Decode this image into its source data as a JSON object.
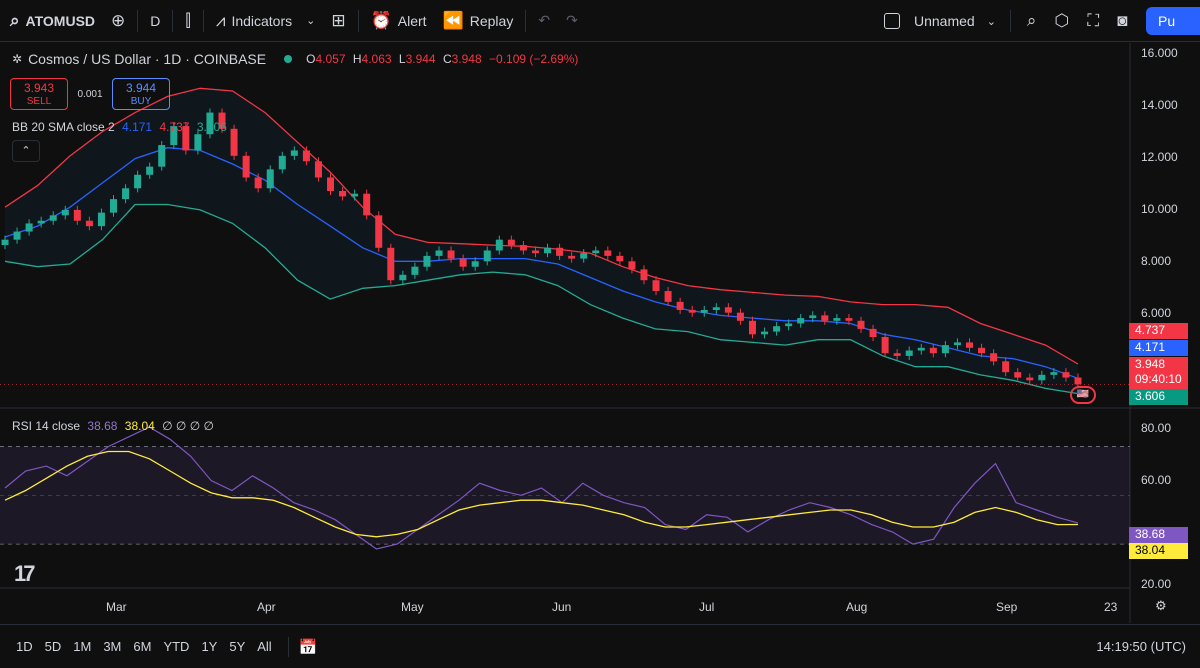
{
  "toolbar": {
    "symbol": "ATOMUSD",
    "interval": "D",
    "indicators": "Indicators",
    "alert": "Alert",
    "replay": "Replay",
    "layout_name": "Unnamed",
    "publish": "Pu"
  },
  "legend": {
    "title": "Cosmos / US Dollar · 1D · COINBASE",
    "open_label": "O",
    "open": "4.057",
    "high_label": "H",
    "high": "4.063",
    "low_label": "L",
    "low": "3.944",
    "close_label": "C",
    "close": "3.948",
    "change": "−0.109 (−2.69%)"
  },
  "trade": {
    "sell_price": "3.943",
    "sell_label": "SELL",
    "spread": "0.001",
    "buy_price": "3.944",
    "buy_label": "BUY"
  },
  "bb": {
    "label": "BB 20 SMA close 2",
    "basis": "4.171",
    "upper": "4.737",
    "lower": "3.606"
  },
  "rsi": {
    "label": "RSI 14 close",
    "value": "38.68",
    "ma": "38.04",
    "extras": "∅ ∅ ∅ ∅"
  },
  "price_axis": [
    "16.000",
    "14.000",
    "12.000",
    "10.000",
    "8.000",
    "6.000"
  ],
  "rsi_axis": [
    "80.00",
    "60.00",
    "20.00"
  ],
  "price_tags": {
    "upper": "4.737",
    "basis": "4.171",
    "last": "3.948",
    "countdown": "09:40:10",
    "lower": "3.606",
    "rsi": "38.68",
    "rsi_ma": "38.04"
  },
  "months": [
    "Mar",
    "Apr",
    "May",
    "Jun",
    "Jul",
    "Aug",
    "Sep",
    "23"
  ],
  "ranges": [
    "1D",
    "5D",
    "1M",
    "3M",
    "6M",
    "YTD",
    "1Y",
    "5Y",
    "All"
  ],
  "clock": "14:19:50 (UTC)",
  "colors": {
    "up": "#22ab94",
    "down": "#f23645",
    "basis": "#2962ff",
    "rsi": "#7e57c2",
    "rsi_ma": "#ffeb3b"
  },
  "chart_data": {
    "type": "candlestick",
    "ylim": [
      3.0,
      16.5
    ],
    "close": [
      9.3,
      9.6,
      9.9,
      10.0,
      10.2,
      10.4,
      10.0,
      9.8,
      10.3,
      10.8,
      11.2,
      11.7,
      12.0,
      12.8,
      13.5,
      12.6,
      13.2,
      14.0,
      13.4,
      12.4,
      11.6,
      11.2,
      11.9,
      12.4,
      12.6,
      12.2,
      11.6,
      11.1,
      10.9,
      11.0,
      10.2,
      9.0,
      7.8,
      8.0,
      8.3,
      8.7,
      8.9,
      8.6,
      8.3,
      8.5,
      8.9,
      9.3,
      9.1,
      8.9,
      8.8,
      9.0,
      8.7,
      8.6,
      8.8,
      8.9,
      8.7,
      8.5,
      8.2,
      7.8,
      7.4,
      7.0,
      6.7,
      6.6,
      6.7,
      6.8,
      6.6,
      6.3,
      5.8,
      5.9,
      6.1,
      6.2,
      6.4,
      6.5,
      6.3,
      6.4,
      6.3,
      6.0,
      5.7,
      5.1,
      5.0,
      5.2,
      5.3,
      5.1,
      5.4,
      5.5,
      5.3,
      5.1,
      4.8,
      4.4,
      4.2,
      4.1,
      4.3,
      4.4,
      4.2,
      3.95
    ],
    "bb_upper": [
      10.5,
      11.3,
      12.4,
      13.3,
      14.0,
      14.6,
      14.9,
      14.8,
      14.0,
      12.9,
      11.8,
      10.5,
      9.5,
      9.2,
      9.15,
      9.1,
      9.05,
      8.95,
      8.8,
      8.3,
      7.9,
      7.6,
      7.45,
      7.35,
      7.25,
      7.2,
      7.0,
      6.9,
      6.9,
      6.8,
      6.2,
      5.8,
      5.4,
      4.7
    ],
    "bb_basis": [
      9.4,
      9.8,
      10.5,
      11.4,
      12.3,
      12.7,
      12.6,
      12.1,
      11.5,
      10.6,
      9.8,
      9.0,
      8.5,
      8.5,
      8.6,
      8.6,
      8.6,
      8.4,
      7.9,
      7.4,
      7.0,
      6.7,
      6.5,
      6.4,
      6.3,
      6.3,
      6.2,
      5.8,
      5.6,
      5.3,
      5.0,
      4.9,
      4.6,
      4.171
    ],
    "bb_lower": [
      8.5,
      8.3,
      8.4,
      9.3,
      10.6,
      10.6,
      10.4,
      9.9,
      9.0,
      7.8,
      7.1,
      7.5,
      7.6,
      7.8,
      8.0,
      8.1,
      8.0,
      7.6,
      6.9,
      6.4,
      6.0,
      5.9,
      5.6,
      5.5,
      5.4,
      5.6,
      5.6,
      5.0,
      4.6,
      4.6,
      4.3,
      4.1,
      3.8,
      3.606
    ],
    "rsi": [
      53,
      60,
      62,
      58,
      64,
      70,
      74,
      78,
      73,
      66,
      56,
      52,
      58,
      53,
      47,
      44,
      40,
      34,
      28,
      30,
      36,
      42,
      48,
      55,
      52,
      50,
      53,
      47,
      55,
      50,
      47,
      45,
      38,
      36,
      42,
      41,
      35,
      40,
      44,
      47,
      45,
      42,
      38,
      35,
      30,
      32,
      45,
      55,
      63,
      47,
      44,
      41,
      38.68
    ],
    "rsi_ma": [
      48,
      52,
      57,
      62,
      66,
      68,
      68,
      65,
      60,
      55,
      51,
      49,
      49,
      48,
      45,
      41,
      37,
      34,
      33,
      34,
      36,
      40,
      44,
      46,
      47,
      48,
      48,
      47,
      46,
      44,
      42,
      39,
      37,
      37,
      38,
      39,
      40,
      41,
      42,
      43,
      44,
      44,
      42,
      39,
      37,
      37,
      39,
      43,
      45,
      43,
      40,
      38,
      38.04
    ],
    "rsi_ylim": [
      12,
      85
    ]
  }
}
